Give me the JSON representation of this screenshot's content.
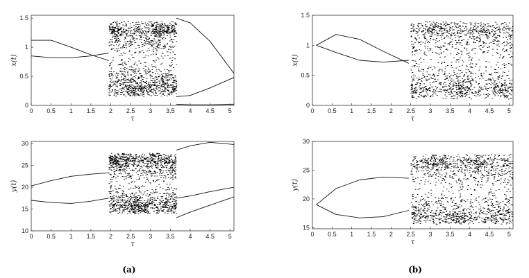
{
  "chart_data": [
    {
      "id": "a-top",
      "type": "scatter",
      "panel": "a",
      "xlabel": "τ",
      "ylabel": "x(t)",
      "xlim": [
        0,
        5.1
      ],
      "ylim": [
        0,
        1.55
      ],
      "xticks": [
        "0",
        "0.5",
        "1",
        "1.5",
        "2",
        "2.5",
        "3",
        "3.5",
        "4",
        "4.5",
        "5"
      ],
      "yticks": [
        "0",
        "0.5",
        "1",
        "1.5"
      ],
      "branches_before": [
        {
          "x": [
            0.0,
            0.5,
            1.0,
            1.5,
            1.95
          ],
          "y": [
            1.12,
            1.12,
            1.0,
            0.87,
            0.77
          ]
        },
        {
          "x": [
            0.0,
            0.5,
            1.0,
            1.5,
            1.95
          ],
          "y": [
            0.85,
            0.82,
            0.82,
            0.85,
            0.9
          ]
        }
      ],
      "chaos_band": {
        "x_range": [
          1.95,
          3.65
        ],
        "y_range": [
          0.15,
          1.45
        ]
      },
      "branches_after": [
        {
          "x": [
            3.65,
            4.0,
            4.5,
            5.1
          ],
          "y": [
            1.5,
            1.42,
            1.1,
            0.55
          ]
        },
        {
          "x": [
            3.65,
            4.0,
            4.5,
            5.1
          ],
          "y": [
            0.15,
            0.17,
            0.3,
            0.48
          ]
        },
        {
          "x": [
            3.65,
            4.0,
            4.5,
            5.1
          ],
          "y": [
            0.02,
            0.01,
            0.01,
            0.02
          ]
        }
      ]
    },
    {
      "id": "a-bottom",
      "type": "scatter",
      "panel": "a",
      "xlabel": "τ",
      "ylabel": "y(t)",
      "xlim": [
        0,
        5.1
      ],
      "ylim": [
        10,
        30.5
      ],
      "xticks": [
        "0",
        "0.5",
        "1",
        "1.5",
        "2",
        "2.5",
        "3",
        "3.5",
        "4",
        "4.5",
        "5"
      ],
      "yticks": [
        "10",
        "15",
        "20",
        "25",
        "30"
      ],
      "branches_before": [
        {
          "x": [
            0.0,
            0.5,
            1.0,
            1.5,
            1.95
          ],
          "y": [
            20.3,
            21.5,
            22.5,
            23.0,
            23.3
          ]
        },
        {
          "x": [
            0.0,
            0.5,
            1.0,
            1.5,
            1.95
          ],
          "y": [
            17.0,
            16.5,
            16.3,
            16.8,
            17.5
          ]
        }
      ],
      "chaos_band": {
        "x_range": [
          1.95,
          3.65
        ],
        "y_range": [
          13.8,
          27.8
        ]
      },
      "branches_after": [
        {
          "x": [
            3.65,
            4.0,
            4.5,
            5.1
          ],
          "y": [
            28.5,
            29.5,
            30.3,
            29.8
          ]
        },
        {
          "x": [
            3.65,
            4.0,
            4.5,
            5.1
          ],
          "y": [
            17.5,
            18.0,
            19.0,
            20.0
          ]
        },
        {
          "x": [
            3.65,
            4.0,
            4.5,
            5.1
          ],
          "y": [
            13.0,
            14.3,
            15.9,
            17.8
          ]
        }
      ]
    },
    {
      "id": "b-top",
      "type": "scatter",
      "panel": "b",
      "xlabel": "τ",
      "ylabel": "x(t)",
      "xlim": [
        0,
        5.1
      ],
      "ylim": [
        0,
        1.5
      ],
      "xticks": [
        "0",
        "0.5",
        "1",
        "1.5",
        "2",
        "2.5",
        "3",
        "3.5",
        "4",
        "4.5",
        "5"
      ],
      "yticks": [
        "0",
        "0.5",
        "1",
        "1.5"
      ],
      "branches_before": [
        {
          "x": [
            0.1,
            0.6,
            1.2,
            1.8,
            2.45
          ],
          "y": [
            1.0,
            1.18,
            1.1,
            0.9,
            0.7
          ]
        },
        {
          "x": [
            0.1,
            0.6,
            1.2,
            1.8,
            2.45
          ],
          "y": [
            1.0,
            0.88,
            0.75,
            0.72,
            0.75
          ]
        }
      ],
      "chaos_band": {
        "x_range": [
          2.5,
          5.1
        ],
        "y_range": [
          0.1,
          1.4
        ]
      }
    },
    {
      "id": "b-bottom",
      "type": "scatter",
      "panel": "b",
      "xlabel": "τ",
      "ylabel": "y(t)",
      "xlim": [
        0,
        5.1
      ],
      "ylim": [
        14.8,
        30
      ],
      "xticks": [
        "0",
        "0.5",
        "1",
        "1.5",
        "2",
        "2.5",
        "3",
        "3.5",
        "4",
        "4.5",
        "5"
      ],
      "yticks": [
        "15",
        "20",
        "25",
        "30"
      ],
      "branches_before": [
        {
          "x": [
            0.1,
            0.6,
            1.2,
            1.8,
            2.45
          ],
          "y": [
            19.0,
            21.8,
            23.3,
            23.8,
            23.6
          ]
        },
        {
          "x": [
            0.1,
            0.6,
            1.2,
            1.8,
            2.45
          ],
          "y": [
            19.0,
            17.3,
            16.7,
            16.9,
            18.0
          ]
        }
      ],
      "chaos_band": {
        "x_range": [
          2.5,
          5.1
        ],
        "y_range": [
          15.5,
          27.8
        ]
      }
    }
  ],
  "panel_labels": [
    "(a)",
    "(b)"
  ]
}
